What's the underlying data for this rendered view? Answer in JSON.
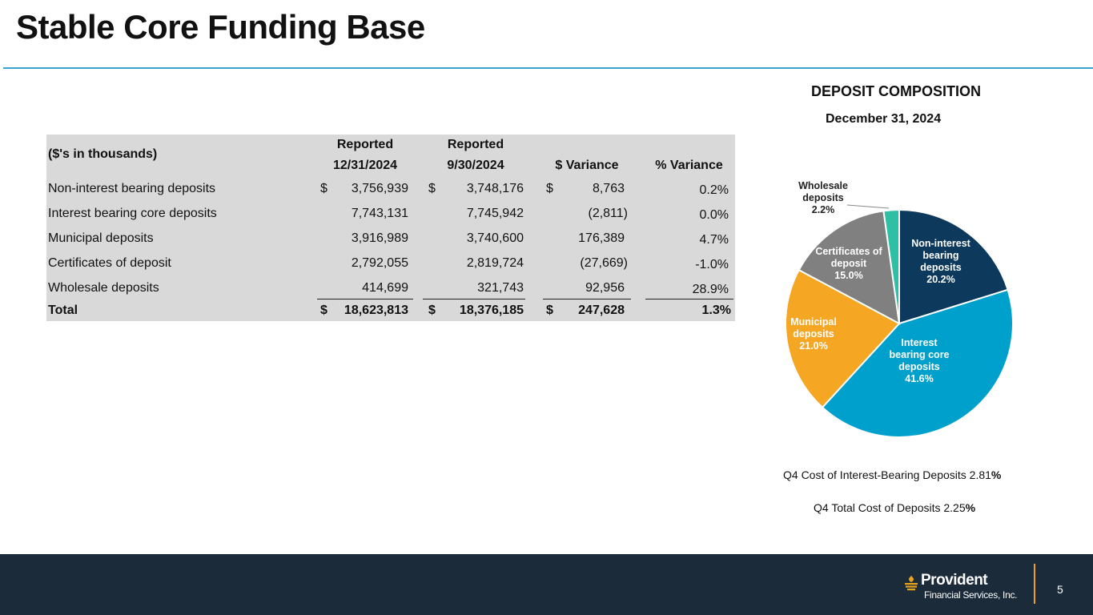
{
  "slide": {
    "title": "Stable Core Funding Base",
    "page_number": "5"
  },
  "table": {
    "unit_label": "($'s in thousands)",
    "col_headers": [
      {
        "line1": "Reported",
        "line2": "12/31/2024"
      },
      {
        "line1": "Reported",
        "line2": "9/30/2024"
      },
      {
        "line1": "",
        "line2": "$ Variance"
      },
      {
        "line1": "",
        "line2": "% Variance"
      }
    ],
    "dollar_sign": "$",
    "rows": [
      {
        "label": "Non-interest bearing deposits",
        "r1": "3,756,939",
        "r2": "3,748,176",
        "var": "8,763",
        "pct": "0.2%"
      },
      {
        "label": "Interest bearing core deposits",
        "r1": "7,743,131",
        "r2": "7,745,942",
        "var": "(2,811)",
        "pct": "0.0%"
      },
      {
        "label": "Municipal deposits",
        "r1": "3,916,989",
        "r2": "3,740,600",
        "var": "176,389",
        "pct": "4.7%"
      },
      {
        "label": "Certificates of deposit",
        "r1": "2,792,055",
        "r2": "2,819,724",
        "var": "(27,669)",
        "pct": "-1.0%"
      },
      {
        "label": "Wholesale deposits",
        "r1": "414,699",
        "r2": "321,743",
        "var": "92,956",
        "pct": "28.9%"
      }
    ],
    "total": {
      "label": "Total",
      "r1": "18,623,813",
      "r2": "18,376,185",
      "var": "247,628",
      "pct": "1.3%"
    }
  },
  "chart_data": {
    "type": "pie",
    "title": "DEPOSIT COMPOSITION",
    "subtitle": "December 31, 2024",
    "slices": [
      {
        "label": "Non-interest bearing deposits",
        "label_lines": [
          "Non-interest",
          "bearing",
          "deposits",
          "20.2%"
        ],
        "value": 20.2,
        "color": "#0d3a5c",
        "text_color": "#ffffff"
      },
      {
        "label": "Interest bearing core deposits",
        "label_lines": [
          "Interest",
          "bearing core",
          "deposits",
          "41.6%"
        ],
        "value": 41.6,
        "color": "#00a0cc",
        "text_color": "#ffffff"
      },
      {
        "label": "Municipal deposits",
        "label_lines": [
          "Municipal",
          "deposits",
          "21.0%"
        ],
        "value": 21.0,
        "color": "#f5a623",
        "text_color": "#ffffff"
      },
      {
        "label": "Certificates of deposit",
        "label_lines": [
          "Certificates of",
          "deposit",
          "15.0%"
        ],
        "value": 15.0,
        "color": "#808080",
        "text_color": "#ffffff"
      },
      {
        "label": "Wholesale deposits",
        "label_lines": [
          "Wholesale",
          "deposits",
          "2.2%"
        ],
        "value": 2.2,
        "color": "#2ebfa5",
        "text_color": "#222222"
      }
    ]
  },
  "notes": {
    "cost_ib_text": "Q4 Cost of Interest-Bearing Deposits 2.81",
    "cost_ib_pct": "%",
    "cost_total_text": "Q4 Total Cost of Deposits  2.25",
    "cost_total_pct": "%"
  },
  "footer": {
    "logo_name": "Provident",
    "logo_sub": "Financial Services, Inc."
  },
  "colors": {
    "accent_rule": "#3aa3cf",
    "footer_bg": "#1c2b39",
    "footer_rule": "#e8a21c"
  }
}
